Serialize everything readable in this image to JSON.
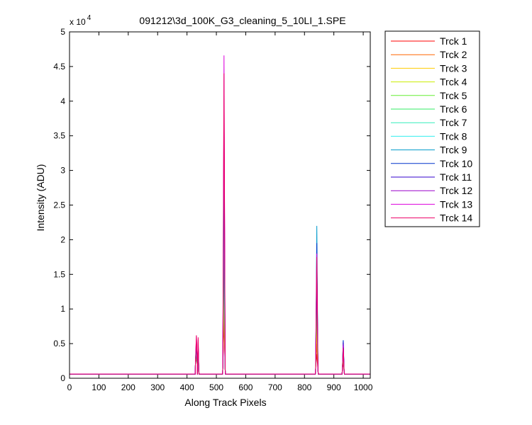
{
  "chart_data": {
    "type": "line",
    "title": "091212\\3d_100K_G3_cleaning_5_10LI_1.SPE",
    "xlabel": "Along Track Pixels",
    "ylabel": "Intensity (ADU)",
    "y_exponent_label": "x 10",
    "y_exponent_power": "4",
    "xlim": [
      0,
      1024
    ],
    "ylim": [
      0,
      50000
    ],
    "x_ticks": [
      0,
      100,
      200,
      300,
      400,
      500,
      600,
      700,
      800,
      900,
      1000
    ],
    "y_ticks": [
      0,
      5000,
      10000,
      15000,
      20000,
      25000,
      30000,
      35000,
      40000,
      45000,
      50000
    ],
    "y_tick_labels": [
      "0",
      "0.5",
      "1",
      "1.5",
      "2",
      "2.5",
      "3",
      "3.5",
      "4",
      "4.5",
      "5"
    ],
    "baseline": 600,
    "peaks": [
      {
        "center": 432,
        "width": 4,
        "base": 2600,
        "heights": [
          2600,
          2700,
          2800,
          3000,
          3200,
          3400,
          3800,
          4200,
          4600,
          5000,
          5300,
          5700,
          6100,
          6200
        ]
      },
      {
        "center": 438,
        "width": 3,
        "base": 2000,
        "heights": [
          2400,
          2600,
          2800,
          3000,
          3300,
          3600,
          4000,
          4300,
          4600,
          4800,
          5000,
          5200,
          5600,
          5900
        ]
      },
      {
        "center": 526,
        "width": 5,
        "base": 1600,
        "heights": [
          8000,
          9500,
          11000,
          13000,
          16000,
          19000,
          22000,
          26000,
          30000,
          33000,
          40800,
          38000,
          46600,
          44000
        ]
      },
      {
        "center": 842,
        "width": 5,
        "base": 1400,
        "heights": [
          3500,
          5000,
          7000,
          9000,
          11000,
          13000,
          16000,
          18500,
          22000,
          19500,
          15800,
          16000,
          18000,
          17500
        ]
      },
      {
        "center": 932,
        "width": 4,
        "base": 1200,
        "heights": [
          2200,
          2600,
          3000,
          3400,
          3800,
          4200,
          4500,
          5000,
          5400,
          5500,
          5200,
          4900,
          4700,
          4400
        ]
      }
    ],
    "series": [
      {
        "name": "Trck 1",
        "color": "#ff0000"
      },
      {
        "name": "Trck 2",
        "color": "#ff6600"
      },
      {
        "name": "Trck 3",
        "color": "#ffcc00"
      },
      {
        "name": "Trck 4",
        "color": "#ccee00"
      },
      {
        "name": "Trck 5",
        "color": "#66ee33"
      },
      {
        "name": "Trck 6",
        "color": "#33ee66"
      },
      {
        "name": "Trck 7",
        "color": "#33eebb"
      },
      {
        "name": "Trck 8",
        "color": "#33eeee"
      },
      {
        "name": "Trck 9",
        "color": "#0099cc"
      },
      {
        "name": "Trck 10",
        "color": "#0033cc"
      },
      {
        "name": "Trck 11",
        "color": "#3300cc"
      },
      {
        "name": "Trck 12",
        "color": "#9900cc"
      },
      {
        "name": "Trck 13",
        "color": "#dd00dd"
      },
      {
        "name": "Trck 14",
        "color": "#ee0066"
      }
    ],
    "legend_location": "outside-right"
  }
}
